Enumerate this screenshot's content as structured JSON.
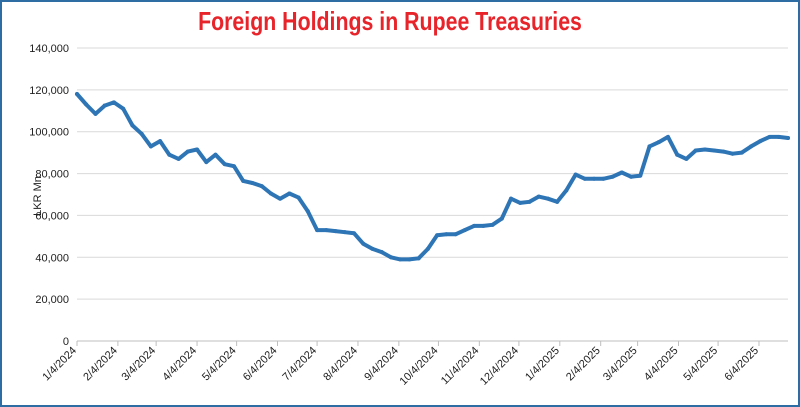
{
  "chart_data": {
    "type": "line",
    "title": "Foreign Holdings in Rupee Treasuries",
    "xlabel": "",
    "ylabel": "LKR Mn",
    "ylim": [
      0,
      140000
    ],
    "y_ticks": [
      "0",
      "20,000",
      "40,000",
      "60,000",
      "80,000",
      "100,000",
      "120,000",
      "140,000"
    ],
    "x_tick_labels": [
      "1/4/2024",
      "2/4/2024",
      "3/4/2024",
      "4/4/2024",
      "5/4/2024",
      "6/4/2024",
      "7/4/2024",
      "8/4/2024",
      "9/4/2024",
      "10/4/2024",
      "11/4/2024",
      "12/4/2024",
      "1/4/2025",
      "2/4/2025",
      "3/4/2025",
      "4/4/2025",
      "5/4/2025",
      "6/4/2025"
    ],
    "grid": true,
    "line_color": "#2e75b6",
    "series": [
      {
        "x": [
          "2024-01-04",
          "2024-01-11",
          "2024-01-18",
          "2024-01-25",
          "2024-02-01",
          "2024-02-08",
          "2024-02-15",
          "2024-02-22",
          "2024-02-29",
          "2024-03-07",
          "2024-03-14",
          "2024-03-21",
          "2024-03-28",
          "2024-04-04",
          "2024-04-11",
          "2024-04-18",
          "2024-04-25",
          "2024-05-02",
          "2024-05-09",
          "2024-05-16",
          "2024-05-23",
          "2024-05-30",
          "2024-06-06",
          "2024-06-13",
          "2024-06-20",
          "2024-06-27",
          "2024-07-04",
          "2024-07-11",
          "2024-07-18",
          "2024-07-25",
          "2024-08-01",
          "2024-08-08",
          "2024-08-15",
          "2024-08-22",
          "2024-08-29",
          "2024-09-05",
          "2024-09-12",
          "2024-09-19",
          "2024-09-26",
          "2024-10-03",
          "2024-10-10",
          "2024-10-17",
          "2024-10-24",
          "2024-10-31",
          "2024-11-07",
          "2024-11-14",
          "2024-11-21",
          "2024-11-28",
          "2024-12-05",
          "2024-12-12",
          "2024-12-19",
          "2024-12-26",
          "2025-01-02",
          "2025-01-09",
          "2025-01-16",
          "2025-01-23",
          "2025-01-30",
          "2025-02-06",
          "2025-02-13",
          "2025-02-20",
          "2025-02-27",
          "2025-03-06",
          "2025-03-13",
          "2025-03-20",
          "2025-03-27",
          "2025-04-03",
          "2025-04-10",
          "2025-04-17",
          "2025-04-24",
          "2025-05-01",
          "2025-05-08",
          "2025-05-15",
          "2025-05-22",
          "2025-05-29",
          "2025-06-05",
          "2025-06-12",
          "2025-06-19",
          "2025-06-26"
        ],
        "values": [
          118000,
          113000,
          108500,
          112500,
          114000,
          111000,
          103000,
          99000,
          93000,
          95500,
          89000,
          87000,
          90500,
          91500,
          85500,
          89000,
          84500,
          83500,
          76500,
          75500,
          74000,
          70500,
          68000,
          70500,
          68500,
          62000,
          53000,
          53000,
          52500,
          52000,
          51500,
          46500,
          44000,
          42500,
          40000,
          39000,
          39000,
          39500,
          44000,
          50500,
          51000,
          51000,
          53000,
          55000,
          55000,
          55500,
          58500,
          68000,
          66000,
          66500,
          69000,
          68000,
          66500,
          72000,
          79500,
          77500,
          77500,
          77500,
          78500,
          80500,
          78500,
          79000,
          93000,
          95000,
          97500,
          89000,
          87000,
          91000,
          91500,
          91000,
          90500,
          89500,
          90000,
          93000,
          95500,
          97500,
          97500,
          97000
        ]
      }
    ]
  }
}
